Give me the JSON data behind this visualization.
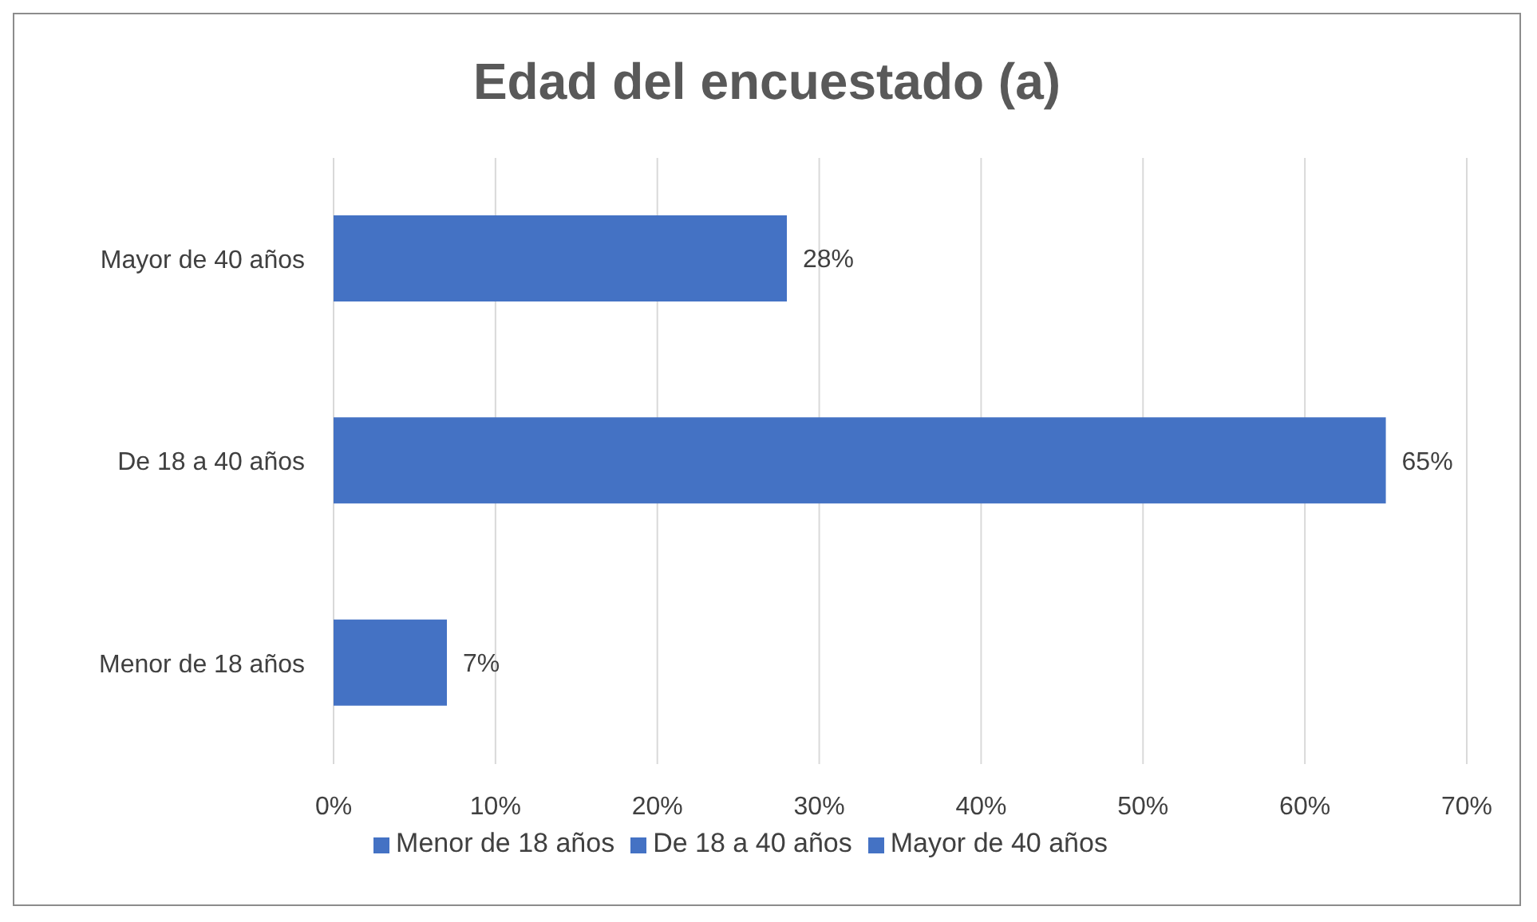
{
  "chart_data": {
    "type": "bar",
    "orientation": "horizontal",
    "stacked": true,
    "title": "Edad del encuestado (a)",
    "categories": [
      "Mayor de 40 años",
      "De 18 a 40 años",
      "Menor de 18 años"
    ],
    "series": [
      {
        "name": "Menor de 18 años",
        "color": "#4472c4",
        "values": [
          null,
          null,
          7
        ],
        "value_labels": [
          null,
          null,
          "7%"
        ]
      },
      {
        "name": "De 18 a 40 años",
        "color": "#4472c4",
        "values": [
          null,
          65,
          null
        ],
        "value_labels": [
          null,
          "65%",
          null
        ]
      },
      {
        "name": "Mayor de 40 años",
        "color": "#4472c4",
        "values": [
          28,
          null,
          null
        ],
        "value_labels": [
          "28%",
          null,
          null
        ]
      }
    ],
    "xlim": [
      0,
      70
    ],
    "xticks": [
      {
        "value": 0,
        "label": "0%"
      },
      {
        "value": 10,
        "label": "10%"
      },
      {
        "value": 20,
        "label": "20%"
      },
      {
        "value": 30,
        "label": "30%"
      },
      {
        "value": 40,
        "label": "40%"
      },
      {
        "value": 50,
        "label": "50%"
      },
      {
        "value": 60,
        "label": "60%"
      },
      {
        "value": 70,
        "label": "70%"
      }
    ],
    "grid": "x",
    "legend": "bottom"
  }
}
